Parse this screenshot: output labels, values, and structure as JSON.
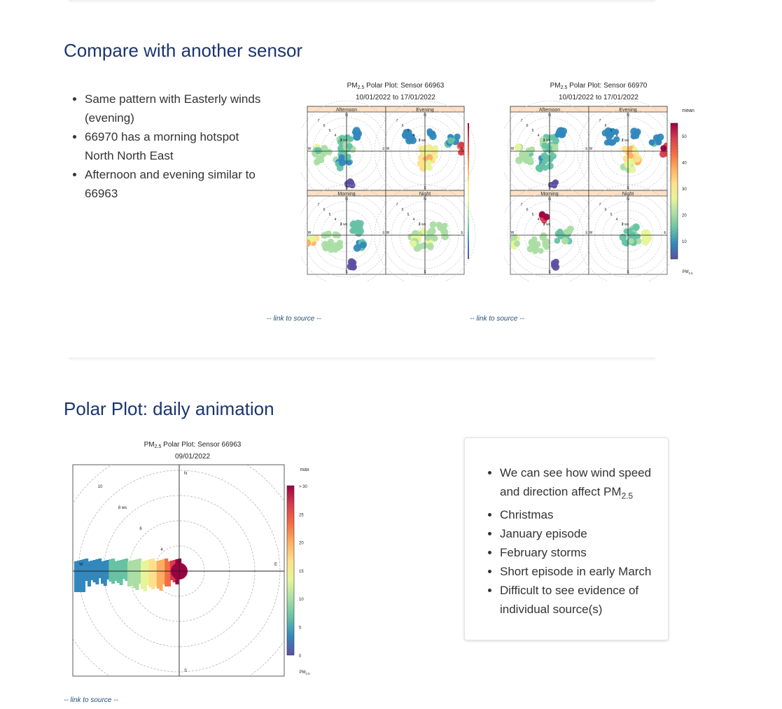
{
  "section1": {
    "title": "Compare with another sensor",
    "bullets": [
      "Same pattern with Easterly winds (evening)",
      "66970 has a morning hotspot North North East",
      "Afternoon and evening similar to 66963"
    ],
    "plots": [
      {
        "title_prefix": "PM",
        "title_sub": "2.5",
        "title_rest": " Polar Plot: Sensor 66963",
        "dates": "10/01/2022 to 17/01/2022",
        "panels": [
          "Afternoon",
          "Evening",
          "Morning",
          "Night"
        ],
        "link": "-- link to source --"
      },
      {
        "title_prefix": "PM",
        "title_sub": "2.5",
        "title_rest": " Polar Plot: Sensor 66970",
        "dates": "10/01/2022 to 17/01/2022",
        "panels": [
          "Afternoon",
          "Evening",
          "Morning",
          "Night"
        ],
        "link": "-- link to source --",
        "legend_title": "mean",
        "legend_ticks": [
          "50",
          "40",
          "30",
          "20",
          "10"
        ],
        "legend_unit": "PM",
        "legend_unit_sub": "2.5"
      }
    ],
    "compass": {
      "n": "N",
      "e": "E",
      "s": "S",
      "w": "W"
    },
    "ws_label": "2 ws",
    "ring_labels": [
      "7",
      "6",
      "5",
      "4",
      "3"
    ]
  },
  "section2": {
    "title": "Polar Plot: daily animation",
    "plot": {
      "title_prefix": "PM",
      "title_sub": "2.5",
      "title_rest": " Polar Plot: Sensor 66963",
      "date": "09/01/2022",
      "ring_labels": [
        "10",
        "8 ws",
        "6",
        "4"
      ],
      "legend_title": "max",
      "legend_ticks": [
        "> 30",
        "25",
        "20",
        "15",
        "10",
        "5",
        "0"
      ],
      "legend_unit": "PM",
      "legend_unit_sub": "2.5",
      "link": "-- link to source --"
    },
    "card_bullets": [
      {
        "text": "We can see how wind speed and direction affect PM",
        "sub": "2.5"
      },
      {
        "text": "Christmas"
      },
      {
        "text": "January episode"
      },
      {
        "text": "February storms"
      },
      {
        "text": "Short episode in early March"
      },
      {
        "text": "Difficult to see evidence of individual source(s)"
      }
    ]
  },
  "colors": {
    "heading": "#1a3570",
    "link": "#1f4e79",
    "strip": "#fde0c5",
    "colormap": [
      "#5e4fa2",
      "#3288bd",
      "#66c2a5",
      "#abdda4",
      "#e6f598",
      "#fee08b",
      "#fdae61",
      "#f46d43",
      "#d53e4f",
      "#9e0142"
    ]
  }
}
